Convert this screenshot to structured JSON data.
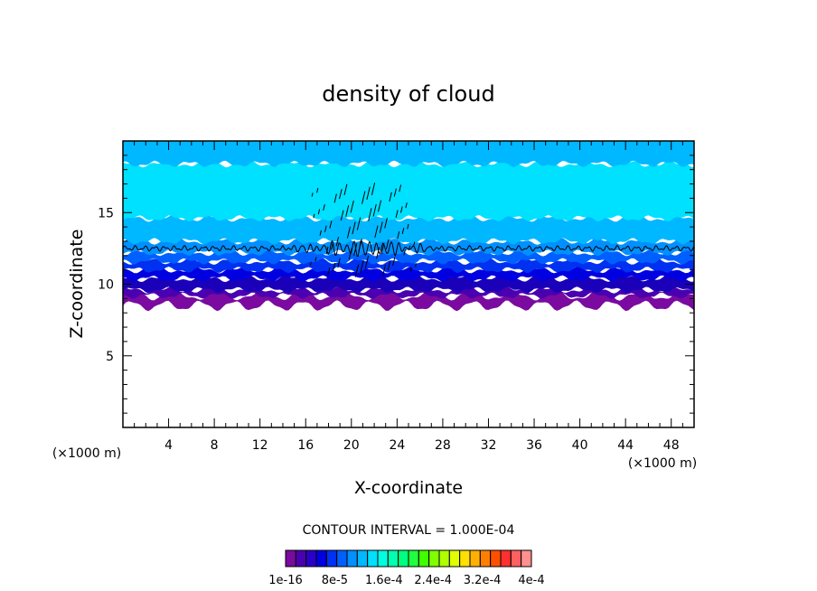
{
  "chart_data": {
    "type": "heatmap",
    "title": "density of cloud",
    "xlabel": "X-coordinate",
    "ylabel": "Z-coordinate",
    "x_unit_left": "(×1000 m)",
    "x_unit_right": "(×1000 m)",
    "xlim": [
      0,
      50
    ],
    "ylim": [
      0,
      20
    ],
    "x_ticks": [
      4,
      8,
      12,
      16,
      20,
      24,
      28,
      32,
      36,
      40,
      44,
      48
    ],
    "y_ticks": [
      5,
      10,
      15
    ],
    "contour_interval_text": "CONTOUR INTERVAL = 1.000E-04",
    "colorbar": {
      "labels": [
        "1e-16",
        "8e-5",
        "1.6e-4",
        "2.4e-4",
        "3.2e-4",
        "4e-4"
      ],
      "colors": [
        "#7a0aa0",
        "#4a00b0",
        "#2a00c8",
        "#0000e0",
        "#0030f0",
        "#0060ff",
        "#0090ff",
        "#00b8ff",
        "#00e0ff",
        "#00ffe0",
        "#00ffb0",
        "#00ff80",
        "#20ff40",
        "#40ff00",
        "#80ff00",
        "#b0ff00",
        "#e0ff00",
        "#ffe000",
        "#ffb000",
        "#ff8000",
        "#ff5000",
        "#ff3030",
        "#ff6060",
        "#ff9090"
      ]
    },
    "layers": [
      {
        "z_bottom": 8.5,
        "z_top": 9.2,
        "color": "#7a0aa0"
      },
      {
        "z_bottom": 9.2,
        "z_top": 9.6,
        "color": "#4a00b0"
      },
      {
        "z_bottom": 9.6,
        "z_top": 10.4,
        "color": "#1a00b8"
      },
      {
        "z_bottom": 10.4,
        "z_top": 11.0,
        "color": "#0000e0"
      },
      {
        "z_bottom": 11.0,
        "z_top": 11.6,
        "color": "#0030f0"
      },
      {
        "z_bottom": 11.6,
        "z_top": 12.2,
        "color": "#0060ff"
      },
      {
        "z_bottom": 12.2,
        "z_top": 13.0,
        "color": "#0090ff"
      },
      {
        "z_bottom": 13.0,
        "z_top": 14.6,
        "color": "#00b8ff"
      },
      {
        "z_bottom": 14.6,
        "z_top": 18.4,
        "color": "#00e0ff"
      },
      {
        "z_bottom": 18.4,
        "z_top": 20.0,
        "color": "#00b8ff"
      }
    ],
    "contour_level_z": 12.5
  }
}
